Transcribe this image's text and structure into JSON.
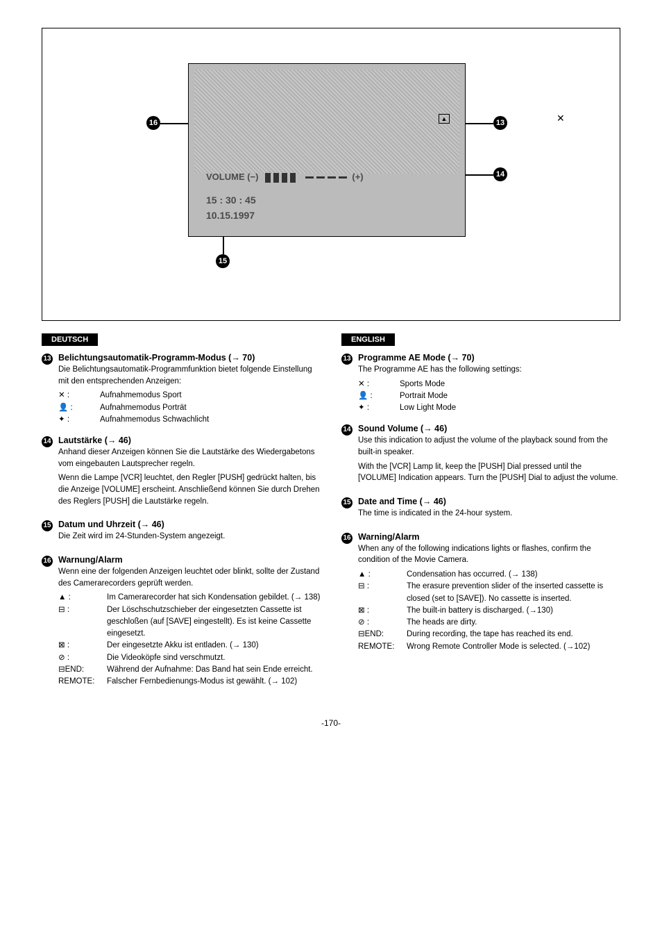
{
  "diagram": {
    "volume_label_left": "VOLUME (−)",
    "volume_label_right": "(+)",
    "time": "15 : 30 : 45",
    "date": "10.15.1997",
    "callouts": {
      "c13": "13",
      "c14": "14",
      "c15": "15",
      "c16": "16"
    },
    "screen_bg": "#bbbbbb",
    "marker13_glyph": "✕",
    "marker16_glyph": "▲"
  },
  "de": {
    "lang": "DEUTSCH",
    "s13": {
      "title": "Belichtungsautomatik-Programm-Modus (→ 70)",
      "text": "Die Belichtungsautomatik-Programmfunktion bietet folgende Einstellung mit den entsprechenden Anzeigen:",
      "rows": [
        {
          "i": "✕ :",
          "d": "Aufnahmemodus Sport"
        },
        {
          "i": "👤 :",
          "d": "Aufnahmemodus Porträt"
        },
        {
          "i": "✦ :",
          "d": "Aufnahmemodus Schwachlicht"
        }
      ]
    },
    "s14": {
      "title": "Lautstärke (→ 46)",
      "t1": "Anhand dieser Anzeigen können Sie die Lautstärke des Wiedergabetons vom eingebauten Lautsprecher regeln.",
      "t2": "Wenn die Lampe [VCR] leuchtet, den Regler [PUSH] gedrückt halten, bis die Anzeige [VOLUME] erscheint. Anschließend können Sie durch Drehen des Reglers [PUSH] die Lautstärke regeln."
    },
    "s15": {
      "title": "Datum und Uhrzeit (→ 46)",
      "t1": "Die Zeit wird im 24-Stunden-System angezeigt."
    },
    "s16": {
      "title": "Warnung/Alarm",
      "t1": "Wenn eine der folgenden Anzeigen leuchtet oder blinkt, sollte der Zustand des Camerarecorders geprüft werden.",
      "rows": [
        {
          "i": "▲ :",
          "d": "Im Camerarecorder hat sich Kondensation gebildet. (→ 138)"
        },
        {
          "i": "⊟ :",
          "d": "Der Löschschutzschieber der eingesetzten Cassette ist geschloßen (auf [SAVE] eingestellt). Es ist keine Cassette eingesetzt."
        },
        {
          "i": "⊠ :",
          "d": "Der eingesetzte Akku ist entladen. (→ 130)"
        },
        {
          "i": "⊘ :",
          "d": "Die Videoköpfe sind verschmutzt."
        },
        {
          "i": "⊟END:",
          "d": "Während der Aufnahme: Das Band hat sein Ende erreicht."
        },
        {
          "i": "REMOTE:",
          "d": "Falscher Fernbedienungs-Modus ist gewählt. (→ 102)"
        }
      ]
    }
  },
  "en": {
    "lang": "ENGLISH",
    "s13": {
      "title": "Programme AE Mode (→ 70)",
      "text": "The Programme AE has the following settings:",
      "rows": [
        {
          "i": "✕ :",
          "d": "Sports Mode"
        },
        {
          "i": "👤 :",
          "d": "Portrait Mode"
        },
        {
          "i": "✦ :",
          "d": "Low Light Mode"
        }
      ]
    },
    "s14": {
      "title": "Sound Volume (→ 46)",
      "t1": "Use this indication to adjust the volume of the playback sound from the built-in speaker.",
      "t2": "With the [VCR] Lamp lit, keep the [PUSH] Dial pressed until the [VOLUME] Indication appears. Turn the [PUSH] Dial to adjust the volume."
    },
    "s15": {
      "title": "Date and Time (→ 46)",
      "t1": "The time is indicated in the 24-hour system."
    },
    "s16": {
      "title": "Warning/Alarm",
      "t1": "When any of the following indications lights or flashes, confirm the condition of the Movie Camera.",
      "rows": [
        {
          "i": "▲ :",
          "d": "Condensation has occurred. (→ 138)"
        },
        {
          "i": "⊟ :",
          "d": "The erasure prevention slider of the inserted cassette is closed (set to [SAVE]). No cassette is inserted."
        },
        {
          "i": "⊠ :",
          "d": "The built-in battery is discharged. (→130)"
        },
        {
          "i": "⊘ :",
          "d": "The heads are dirty."
        },
        {
          "i": "⊟END:",
          "d": "During recording, the tape has reached its end."
        },
        {
          "i": "REMOTE:",
          "d": "Wrong Remote Controller Mode is selected. (→102)"
        }
      ]
    }
  },
  "page_number": "-170-"
}
